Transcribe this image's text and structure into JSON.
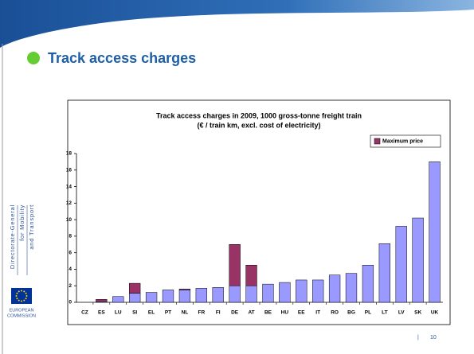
{
  "slide": {
    "title": "Track access charges",
    "sidebar": [
      "Directorate-General",
      "for Mobility",
      "and Transport"
    ],
    "logo": [
      "EUROPEAN",
      "COMMISSION"
    ],
    "page_number": "10"
  },
  "chart_data": {
    "type": "bar",
    "stacked": true,
    "title": "Track access charges in 2009, 1000 gross-tonne freight train",
    "subtitle": "(€ / train km, excl. cost of electricity)",
    "categories": [
      "CZ",
      "ES",
      "LU",
      "SI",
      "EL",
      "PT",
      "NL",
      "FR",
      "FI",
      "DE",
      "AT",
      "BE",
      "HU",
      "EE",
      "IT",
      "RO",
      "BG",
      "PL",
      "LT",
      "LV",
      "SK",
      "UK"
    ],
    "series": [
      {
        "color": "#9999ff",
        "values": [
          0,
          0.1,
          0.7,
          1.1,
          1.2,
          1.5,
          1.5,
          1.7,
          1.8,
          2.0,
          2.0,
          2.2,
          2.4,
          2.7,
          2.7,
          3.3,
          3.5,
          4.5,
          7.1,
          9.2,
          10.2,
          17.0
        ]
      },
      {
        "name": "Maximum price",
        "color": "#993366",
        "values": [
          0,
          0.25,
          0,
          1.2,
          0,
          0,
          0.1,
          0,
          0,
          5.0,
          2.5,
          0,
          0,
          0,
          0,
          0,
          0,
          0,
          0,
          0,
          0,
          0
        ]
      }
    ],
    "ylim": [
      0,
      18
    ],
    "yticks": [
      0,
      2,
      4,
      6,
      8,
      10,
      12,
      14,
      16,
      18
    ],
    "grid": false,
    "legend": "top-right"
  }
}
